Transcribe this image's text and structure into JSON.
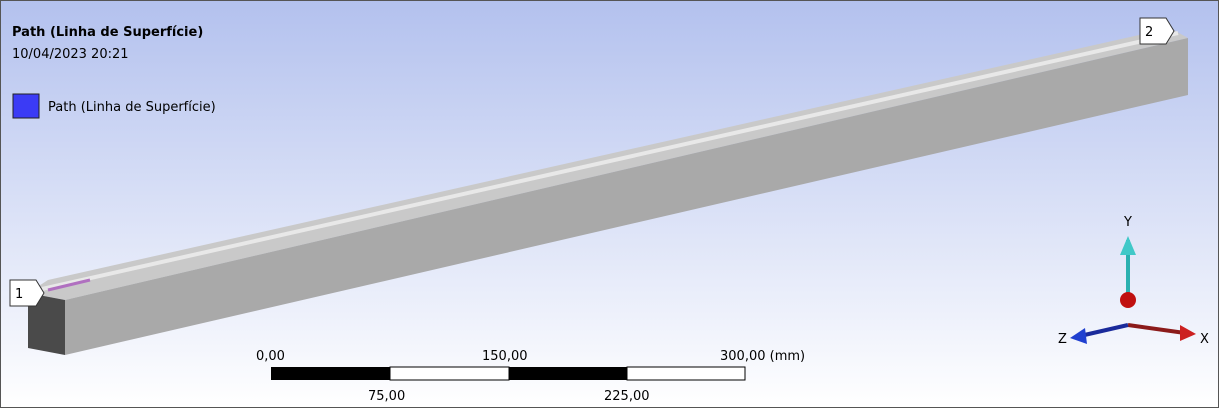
{
  "header": {
    "title": "Path (Linha de Superfície)",
    "timestamp": "10/04/2023 20:21"
  },
  "legend": {
    "label": "Path (Linha de Superfície)"
  },
  "path_points": {
    "start": "1",
    "end": "2"
  },
  "triad": {
    "y": "Y",
    "z": "Z",
    "x": "X"
  },
  "scale_bar": {
    "top_labels": [
      "0,00",
      "150,00",
      "300,00 (mm)"
    ],
    "bottom_labels": [
      "75,00",
      "225,00"
    ]
  }
}
